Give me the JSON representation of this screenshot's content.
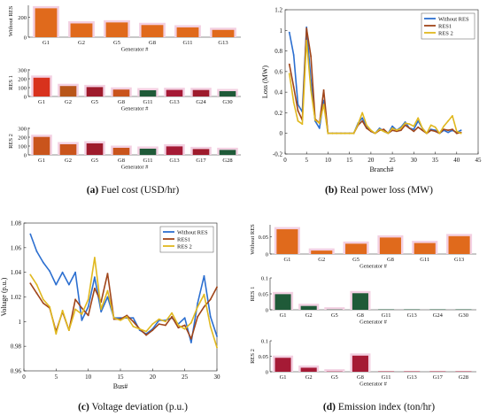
{
  "captions": {
    "a": {
      "letter": "(a)",
      "text": "Fuel cost (USD/hr)"
    },
    "b": {
      "letter": "(b)",
      "text": "Real power loss (MW)"
    },
    "c": {
      "letter": "(c)",
      "text": "Voltage deviation (p.u.)"
    },
    "d": {
      "letter": "(d)",
      "text": "Emission index (ton/hr)"
    }
  },
  "chart_data": [
    {
      "id": "a1",
      "type": "bar",
      "ylabel": "Without RES",
      "xlabel": "Generator #",
      "yticks": [
        0,
        200
      ],
      "ylim": [
        0,
        320
      ],
      "categories": [
        "G1",
        "G2",
        "G5",
        "G8",
        "G11",
        "G13"
      ],
      "values": [
        290,
        138,
        148,
        122,
        98,
        73
      ],
      "colors": [
        "#e06a1c",
        "#e06a1c",
        "#e06a1c",
        "#e06a1c",
        "#e06a1c",
        "#e06a1c"
      ]
    },
    {
      "id": "a2",
      "type": "bar",
      "ylabel": "RES 1",
      "xlabel": "Generator #",
      "yticks": [
        0,
        100,
        200,
        300
      ],
      "ylim": [
        0,
        310
      ],
      "categories": [
        "G1",
        "G2",
        "G5",
        "G8",
        "G11",
        "G13",
        "G24",
        "G30"
      ],
      "values": [
        212,
        118,
        106,
        78,
        70,
        74,
        73,
        60
      ],
      "colors": [
        "#d8321d",
        "#b8561a",
        "#9e1b2c",
        "#c9541c",
        "#1f5a38",
        "#a51a35",
        "#9e1b2c",
        "#1f5a38"
      ]
    },
    {
      "id": "a3",
      "type": "bar",
      "ylabel": "RES 2",
      "xlabel": "Generator #",
      "yticks": [
        0,
        100,
        200,
        300
      ],
      "ylim": [
        0,
        310
      ],
      "categories": [
        "G1",
        "G2",
        "G5",
        "G8",
        "G11",
        "G13",
        "G17",
        "G28"
      ],
      "values": [
        203,
        120,
        130,
        80,
        70,
        96,
        66,
        56
      ],
      "colors": [
        "#c9541c",
        "#c9541c",
        "#9e1b2c",
        "#c9541c",
        "#1f5a38",
        "#a51a35",
        "#9e1b2c",
        "#1f5a38"
      ]
    },
    {
      "id": "b",
      "type": "line",
      "xlabel": "Branch#",
      "ylabel": "Loss (MW)",
      "xlim": [
        0,
        45
      ],
      "ylim": [
        -0.2,
        1.2
      ],
      "xticks": [
        0,
        5,
        10,
        15,
        20,
        25,
        30,
        35,
        40,
        45
      ],
      "yticks": [
        -0.2,
        0,
        0.2,
        0.4,
        0.6,
        0.8,
        1,
        1.2
      ],
      "legend": "top-right",
      "x": [
        1,
        2,
        3,
        4,
        5,
        6,
        7,
        8,
        9,
        10,
        11,
        12,
        13,
        14,
        15,
        16,
        17,
        18,
        19,
        20,
        21,
        22,
        23,
        24,
        25,
        26,
        27,
        28,
        29,
        30,
        31,
        32,
        33,
        34,
        35,
        36,
        37,
        38,
        39,
        40,
        41
      ],
      "series": [
        {
          "name": "Without RES",
          "color": "#2c6fd0",
          "values": [
            0.98,
            0.76,
            0.28,
            0.21,
            1.03,
            0.52,
            0.12,
            0.05,
            0.32,
            0,
            0,
            0,
            0,
            0,
            0,
            0,
            0.1,
            0.15,
            0.06,
            0.02,
            0,
            0.05,
            0.02,
            0,
            0.07,
            0.03,
            0.06,
            0.11,
            0.05,
            0.04,
            0.12,
            0.05,
            0,
            0.04,
            0.03,
            0,
            0.03,
            0.01,
            0.03,
            0.01,
            0.03
          ]
        },
        {
          "name": "RES1",
          "color": "#a0451a",
          "values": [
            0.67,
            0.45,
            0.22,
            0.13,
            1.02,
            0.75,
            0.14,
            0.1,
            0.42,
            0,
            0,
            0,
            0,
            0,
            0,
            0,
            0.08,
            0.12,
            0.05,
            0.02,
            0,
            0.03,
            0.04,
            0,
            0.03,
            0.02,
            0.03,
            0.08,
            0.05,
            0.02,
            0.06,
            0.03,
            0,
            0.03,
            0.02,
            0,
            0.04,
            0.03,
            0.04,
            0,
            0.01
          ]
        },
        {
          "name": "RES 2",
          "color": "#e0b81f",
          "values": [
            0.58,
            0.3,
            0.12,
            0.09,
            0.9,
            0.42,
            0.13,
            0.1,
            0.28,
            0,
            0,
            0,
            0,
            0,
            0,
            0,
            0.09,
            0.2,
            0.08,
            0.03,
            0,
            0.04,
            0.02,
            0,
            0.05,
            0.03,
            0.05,
            0.1,
            0.09,
            0.07,
            0.15,
            0.05,
            0,
            0.08,
            0.06,
            0,
            0.07,
            0.12,
            0.17,
            0.02,
            0
          ]
        }
      ]
    },
    {
      "id": "c",
      "type": "line",
      "xlabel": "Bus#",
      "ylabel": "Voltage (p.u.)",
      "xlim": [
        0,
        30
      ],
      "ylim": [
        0.96,
        1.08
      ],
      "xticks": [
        0,
        5,
        10,
        15,
        20,
        25,
        30
      ],
      "yticks": [
        0.96,
        0.98,
        1,
        1.02,
        1.04,
        1.06,
        1.08
      ],
      "legend": "top-right",
      "x": [
        1,
        2,
        3,
        4,
        5,
        6,
        7,
        8,
        9,
        10,
        11,
        12,
        13,
        14,
        15,
        16,
        17,
        18,
        19,
        20,
        21,
        22,
        23,
        24,
        25,
        26,
        27,
        28,
        29,
        30
      ],
      "series": [
        {
          "name": "Without RES",
          "color": "#2c6fd0",
          "values": [
            1.071,
            1.057,
            1.048,
            1.041,
            1.03,
            1.04,
            1.03,
            1.04,
            1.001,
            1.012,
            1.036,
            1.008,
            1.02,
            1.003,
            1.003,
            1.003,
            1.003,
            0.993,
            0.99,
            0.994,
            1.001,
            1.001,
            1.003,
            0.998,
            1.003,
            0.983,
            1.015,
            1.037,
            1.004,
            0.988
          ]
        },
        {
          "name": "RES1",
          "color": "#a0451a",
          "values": [
            1.031,
            1.023,
            1.015,
            1.011,
            0.992,
            1.008,
            0.993,
            1.018,
            1.011,
            1.005,
            1.027,
            1.016,
            1.039,
            1.002,
            1.002,
            1.005,
            1.0,
            0.994,
            0.989,
            0.993,
            0.998,
            0.997,
            1.004,
            0.995,
            0.997,
            0.986,
            1.004,
            1.012,
            1.018,
            1.028
          ]
        },
        {
          "name": "RES 2",
          "color": "#e0b81f",
          "values": [
            1.038,
            1.03,
            1.018,
            1.012,
            0.99,
            1.009,
            0.993,
            1.01,
            1.006,
            1.018,
            1.052,
            1.01,
            1.025,
            1.003,
            1.001,
            1.004,
            0.996,
            0.994,
            0.992,
            0.998,
            1.002,
            1.0,
            1.007,
            0.997,
            0.994,
            0.999,
            1.012,
            1.022,
            0.996,
            0.979
          ]
        }
      ]
    },
    {
      "id": "d1",
      "type": "bar",
      "ylabel": "Without RES",
      "xlabel": "Generator #",
      "yticks": [
        0,
        0.05
      ],
      "ylim": [
        0,
        0.085
      ],
      "categories": [
        "G1",
        "G2",
        "G5",
        "G8",
        "G11",
        "G13"
      ],
      "values": [
        0.072,
        0.01,
        0.03,
        0.048,
        0.032,
        0.052
      ],
      "colors": [
        "#e06a1c",
        "#e06a1c",
        "#e06a1c",
        "#e06a1c",
        "#e06a1c",
        "#e06a1c"
      ]
    },
    {
      "id": "d2",
      "type": "bar",
      "ylabel": "RES 1",
      "xlabel": "Generator #",
      "yticks": [
        0,
        0.05,
        0.1
      ],
      "ylim": [
        0,
        0.1
      ],
      "categories": [
        "G1",
        "G2",
        "G5",
        "G8",
        "G11",
        "G13",
        "G24",
        "G30"
      ],
      "values": [
        0.049,
        0.012,
        0.001,
        0.052,
        0,
        0,
        0,
        0
      ],
      "colors": [
        "#1f5a38",
        "#1f5a38",
        "#1f5a38",
        "#1f5a38",
        "#1f5a38",
        "#1f5a38",
        "#1f5a38",
        "#1f5a38"
      ]
    },
    {
      "id": "d3",
      "type": "bar",
      "ylabel": "RES 2",
      "xlabel": "Generator #",
      "yticks": [
        0,
        0.05,
        0.1
      ],
      "ylim": [
        0,
        0.1
      ],
      "categories": [
        "G1",
        "G2",
        "G5",
        "G8",
        "G11",
        "G13",
        "G17",
        "G28"
      ],
      "values": [
        0.045,
        0.013,
        0.001,
        0.052,
        0,
        0,
        0,
        0
      ],
      "colors": [
        "#a51a35",
        "#a51a35",
        "#a51a35",
        "#a51a35",
        "#a51a35",
        "#a51a35",
        "#a51a35",
        "#a51a35"
      ]
    }
  ]
}
